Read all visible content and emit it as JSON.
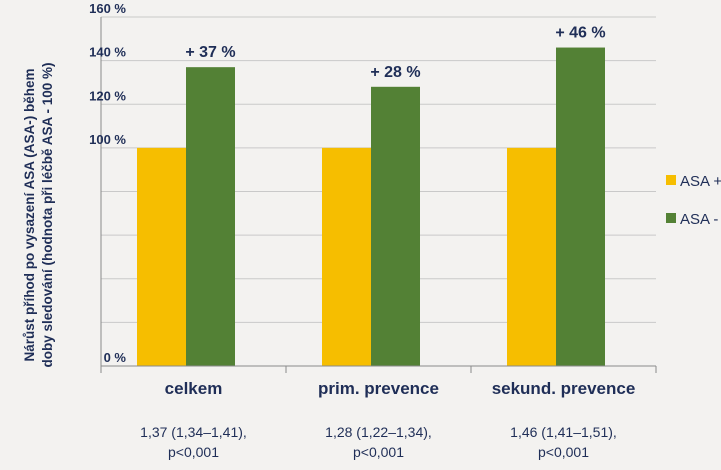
{
  "chart_data": {
    "type": "bar",
    "title": "",
    "ylabel_lines": [
      "Nárůst příhod po vysazení ASA (ASA-) během",
      "doby sledování (hodnota při léčbě ASA - 100 %)"
    ],
    "xlabel": "",
    "categories": [
      "celkem",
      "prim. prevence",
      "sekund. prevence"
    ],
    "series": [
      {
        "name": "ASA +",
        "color": "#f6be00",
        "values": [
          100,
          100,
          100
        ]
      },
      {
        "name": "ASA -",
        "color": "#538135",
        "values": [
          137,
          128,
          146
        ]
      }
    ],
    "bar_labels": [
      "+ 37 %",
      "+ 28 %",
      "+ 46 %"
    ],
    "stats": [
      [
        "1,37 (1,34–1,41),",
        "p<0,001"
      ],
      [
        "1,28 (1,22–1,34),",
        "p<0,001"
      ],
      [
        "1,46 (1,41–1,51),",
        "p<0,001"
      ]
    ],
    "ylim": [
      0,
      160
    ],
    "gridlines": [
      20,
      40,
      60,
      80,
      100,
      120,
      140,
      160
    ],
    "yticks": [
      {
        "value": 0,
        "label": "0 %"
      },
      {
        "value": 100,
        "label": "100 %"
      },
      {
        "value": 120,
        "label": "120 %"
      },
      {
        "value": 140,
        "label": "140 %"
      },
      {
        "value": 160,
        "label": "160 %"
      }
    ],
    "grid": true,
    "legend_position": "right"
  }
}
